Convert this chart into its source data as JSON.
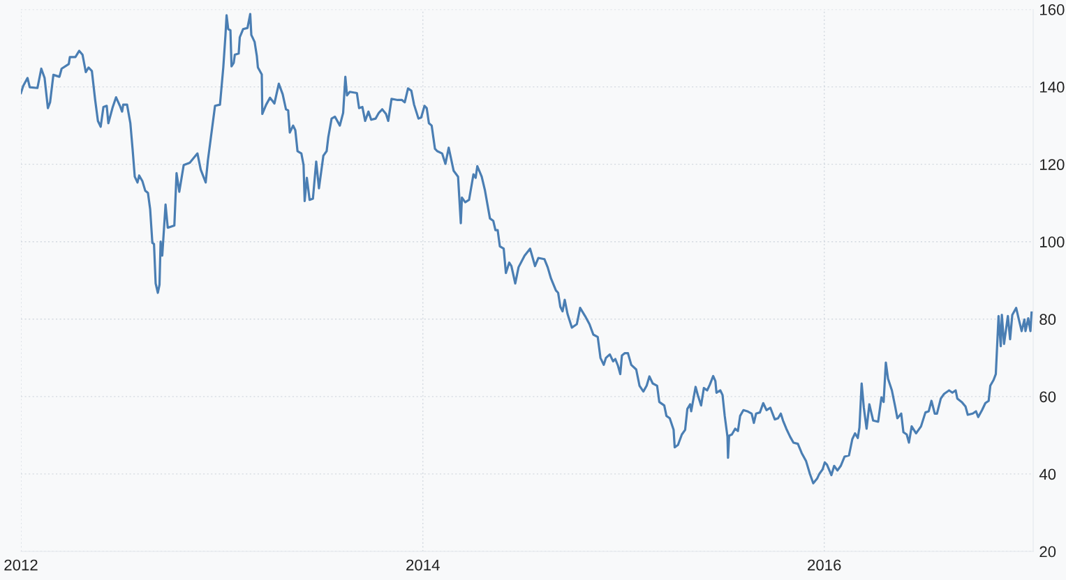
{
  "chart_data": {
    "type": "line",
    "x": [
      "2012-01-01",
      "2012-01-05",
      "2012-01-13",
      "2012-01-17",
      "2012-01-31",
      "2012-02-07",
      "2012-02-13",
      "2012-02-19",
      "2012-02-23",
      "2012-02-29",
      "2012-03-11",
      "2012-03-15",
      "2012-03-28",
      "2012-03-30",
      "2012-04-09",
      "2012-04-16",
      "2012-04-22",
      "2012-04-28",
      "2012-05-03",
      "2012-05-09",
      "2012-05-15",
      "2012-05-20",
      "2012-05-25",
      "2012-05-30",
      "2012-06-05",
      "2012-06-08",
      "2012-06-16",
      "2012-06-22",
      "2012-06-29",
      "2012-07-03",
      "2012-07-05",
      "2012-07-12",
      "2012-07-18",
      "2012-07-22",
      "2012-07-26",
      "2012-07-31",
      "2012-08-03",
      "2012-08-09",
      "2012-08-14",
      "2012-08-19",
      "2012-08-23",
      "2012-08-27",
      "2012-08-30",
      "2012-09-02",
      "2012-09-06",
      "2012-09-09",
      "2012-09-11",
      "2012-09-14",
      "2012-09-20",
      "2012-09-24",
      "2012-10-06",
      "2012-10-10",
      "2012-10-15",
      "2012-10-23",
      "2012-11-03",
      "2012-11-17",
      "2012-11-23",
      "2012-12-02",
      "2012-12-06",
      "2012-12-19",
      "2012-12-28",
      "2013-01-03",
      "2013-01-07",
      "2013-01-09",
      "2013-01-12",
      "2013-01-16",
      "2013-01-18",
      "2013-01-22",
      "2013-01-24",
      "2013-01-31",
      "2013-02-02",
      "2013-02-08",
      "2013-02-16",
      "2013-02-21",
      "2013-02-23",
      "2013-03-01",
      "2013-03-05",
      "2013-03-07",
      "2013-03-14",
      "2013-03-15",
      "2013-03-22",
      "2013-03-29",
      "2013-04-06",
      "2013-04-14",
      "2013-04-21",
      "2013-04-27",
      "2013-05-01",
      "2013-05-04",
      "2013-05-10",
      "2013-05-14",
      "2013-05-18",
      "2013-05-25",
      "2013-05-29",
      "2013-05-31",
      "2013-06-04",
      "2013-06-09",
      "2013-06-15",
      "2013-06-21",
      "2013-06-26",
      "2013-07-04",
      "2013-07-10",
      "2013-07-13",
      "2013-07-19",
      "2013-07-25",
      "2013-08-03",
      "2013-08-09",
      "2013-08-13",
      "2013-08-16",
      "2013-08-21",
      "2013-09-03",
      "2013-09-07",
      "2013-09-13",
      "2013-09-18",
      "2013-09-24",
      "2013-09-29",
      "2013-10-07",
      "2013-10-13",
      "2013-10-19",
      "2013-10-26",
      "2013-10-30",
      "2013-11-05",
      "2013-11-16",
      "2013-11-24",
      "2013-11-29",
      "2013-12-05",
      "2013-12-11",
      "2013-12-16",
      "2013-12-24",
      "2013-12-29",
      "2014-01-04",
      "2014-01-08",
      "2014-01-12",
      "2014-01-17",
      "2014-01-23",
      "2014-01-27",
      "2014-02-05",
      "2014-02-11",
      "2014-02-17",
      "2014-02-26",
      "2014-03-06",
      "2014-03-11",
      "2014-03-13",
      "2014-03-19",
      "2014-03-26",
      "2014-04-03",
      "2014-04-07",
      "2014-04-10",
      "2014-04-18",
      "2014-04-24",
      "2014-05-03",
      "2014-05-09",
      "2014-05-13",
      "2014-05-17",
      "2014-05-21",
      "2014-05-28",
      "2014-06-01",
      "2014-06-07",
      "2014-06-11",
      "2014-06-18",
      "2014-06-24",
      "2014-07-05",
      "2014-07-15",
      "2014-07-24",
      "2014-07-30",
      "2014-08-10",
      "2014-08-16",
      "2014-08-22",
      "2014-08-31",
      "2014-09-04",
      "2014-09-08",
      "2014-09-12",
      "2014-09-16",
      "2014-09-21",
      "2014-09-29",
      "2014-10-08",
      "2014-10-14",
      "2014-10-23",
      "2014-10-31",
      "2014-11-07",
      "2014-11-15",
      "2014-11-20",
      "2014-11-26",
      "2014-11-30",
      "2014-12-07",
      "2014-12-13",
      "2014-12-17",
      "2014-12-22",
      "2014-12-26",
      "2014-12-29",
      "2015-01-03",
      "2015-01-09",
      "2015-01-15",
      "2015-01-24",
      "2015-01-30",
      "2015-02-06",
      "2015-02-12",
      "2015-02-17",
      "2015-02-23",
      "2015-03-03",
      "2015-03-07",
      "2015-03-16",
      "2015-03-20",
      "2015-03-26",
      "2015-04-02",
      "2015-04-04",
      "2015-04-10",
      "2015-04-17",
      "2015-04-23",
      "2015-04-27",
      "2015-05-02",
      "2015-05-04",
      "2015-05-12",
      "2015-05-16",
      "2015-05-22",
      "2015-05-27",
      "2015-06-02",
      "2015-06-07",
      "2015-06-13",
      "2015-06-17",
      "2015-06-19",
      "2015-06-26",
      "2015-06-30",
      "2015-07-04",
      "2015-07-09",
      "2015-07-10",
      "2015-07-12",
      "2015-07-17",
      "2015-07-23",
      "2015-07-28",
      "2015-08-01",
      "2015-08-07",
      "2015-08-14",
      "2015-08-22",
      "2015-08-26",
      "2015-08-30",
      "2015-09-06",
      "2015-09-12",
      "2015-09-18",
      "2015-09-25",
      "2015-10-03",
      "2015-10-09",
      "2015-10-14",
      "2015-10-18",
      "2015-10-24",
      "2015-10-31",
      "2015-11-06",
      "2015-11-14",
      "2015-11-21",
      "2015-11-29",
      "2015-12-06",
      "2015-12-12",
      "2015-12-19",
      "2015-12-23",
      "2015-12-29",
      "2016-01-02",
      "2016-01-06",
      "2016-01-14",
      "2016-01-19",
      "2016-01-25",
      "2016-01-31",
      "2016-02-07",
      "2016-02-15",
      "2016-02-21",
      "2016-02-26",
      "2016-03-02",
      "2016-03-05",
      "2016-03-09",
      "2016-03-13",
      "2016-03-18",
      "2016-03-23",
      "2016-03-30",
      "2016-04-08",
      "2016-04-14",
      "2016-04-18",
      "2016-04-22",
      "2016-04-26",
      "2016-05-03",
      "2016-05-09",
      "2016-05-13",
      "2016-05-20",
      "2016-05-24",
      "2016-05-30",
      "2016-06-03",
      "2016-06-08",
      "2016-06-16",
      "2016-06-25",
      "2016-07-03",
      "2016-07-09",
      "2016-07-14",
      "2016-07-20",
      "2016-07-24",
      "2016-07-31",
      "2016-08-06",
      "2016-08-15",
      "2016-08-21",
      "2016-08-27",
      "2016-08-30",
      "2016-09-07",
      "2016-09-14",
      "2016-09-18",
      "2016-09-27",
      "2016-10-03",
      "2016-10-07",
      "2016-10-14",
      "2016-10-20",
      "2016-10-26",
      "2016-10-29",
      "2016-11-04",
      "2016-11-08",
      "2016-11-10",
      "2016-11-13",
      "2016-11-17",
      "2016-11-19",
      "2016-11-23",
      "2016-11-30",
      "2016-12-04",
      "2016-12-08",
      "2016-12-15",
      "2016-12-19",
      "2016-12-25",
      "2016-12-30",
      "2017-01-01",
      "2017-01-06",
      "2017-01-10",
      "2017-01-12"
    ],
    "series": [
      {
        "color": "#4a7eb3",
        "values": [
          138.4,
          140.2,
          142.3,
          139.9,
          139.7,
          144.7,
          142.3,
          134.5,
          136,
          143.1,
          142.6,
          144.7,
          145.9,
          147.7,
          147.7,
          149.3,
          148.3,
          143.8,
          145,
          144.1,
          136.6,
          131.2,
          129.7,
          134.8,
          135.1,
          130.6,
          134.8,
          137.3,
          135.1,
          133.6,
          135.4,
          135.4,
          130.6,
          124,
          116.8,
          115.3,
          117.1,
          115.6,
          113.2,
          112.6,
          108.4,
          99.7,
          99.4,
          89.2,
          86.8,
          88.9,
          100,
          96.4,
          109.6,
          103.6,
          104.2,
          117.7,
          112.9,
          119.8,
          120.4,
          122.8,
          118.6,
          115.3,
          121,
          135.1,
          135.4,
          145,
          153.4,
          158.5,
          154.9,
          154.6,
          145.3,
          146.2,
          148.3,
          148.6,
          152.8,
          154.9,
          155.2,
          158.8,
          153.4,
          151.6,
          148,
          145,
          143.2,
          133,
          135.4,
          137.2,
          135.7,
          140.8,
          138.1,
          134.2,
          133.9,
          128.2,
          130,
          128.8,
          123.4,
          122.8,
          119.8,
          110.5,
          116.5,
          110.8,
          111.1,
          120.7,
          113.8,
          122.2,
          123.4,
          127,
          131.8,
          132.3,
          130,
          133.3,
          142.6,
          137.8,
          138.7,
          138.4,
          134.5,
          134.8,
          131.2,
          133.6,
          131.5,
          131.8,
          133.3,
          134.2,
          133,
          131.2,
          136.9,
          136.6,
          136.6,
          136,
          139.6,
          139,
          135.4,
          131.8,
          132.1,
          135.1,
          134.5,
          130.6,
          130,
          124,
          123.4,
          122.8,
          120.1,
          124.3,
          118.3,
          116.8,
          104.8,
          111.4,
          110.2,
          110.8,
          117.4,
          116.5,
          119.5,
          116.8,
          113.2,
          106,
          105.4,
          103,
          103,
          98.8,
          98.2,
          91.9,
          94.6,
          93.7,
          89.2,
          93.4,
          96.4,
          98.2,
          93.7,
          95.8,
          95.5,
          93.4,
          90.5,
          87.4,
          86.8,
          83.2,
          82,
          85,
          81.4,
          77.8,
          78.7,
          82.9,
          80.8,
          78.7,
          76,
          75.4,
          70,
          68.2,
          70,
          70.9,
          69.1,
          69.7,
          67.9,
          65.8,
          70.6,
          71.2,
          71.2,
          68.2,
          67,
          62.8,
          61.3,
          62.8,
          65.2,
          63.4,
          62.8,
          58.6,
          57.7,
          55,
          54.4,
          51.4,
          46.9,
          47.5,
          50.2,
          51.4,
          56.8,
          58,
          56.2,
          62.5,
          60.4,
          57.7,
          62.2,
          61.6,
          63.1,
          65.3,
          64,
          61,
          61.6,
          60.4,
          55,
          49.6,
          44.2,
          49.9,
          50.2,
          51.7,
          51.1,
          55,
          56.5,
          56.2,
          55.6,
          53.2,
          55.6,
          55.9,
          58.3,
          56.5,
          57.1,
          54.1,
          54.4,
          55.6,
          53.8,
          51.7,
          49.6,
          48.1,
          47.8,
          45.4,
          43.3,
          40,
          37.6,
          38.8,
          40,
          41.2,
          43,
          42.4,
          39.7,
          42.1,
          40.9,
          42.1,
          44.5,
          44.8,
          49,
          50.5,
          49.3,
          52,
          63.4,
          57.1,
          51.7,
          58,
          53.8,
          53.5,
          59.8,
          58.6,
          68.8,
          64.6,
          61.6,
          57.4,
          54.4,
          55.6,
          50.8,
          50.2,
          48.1,
          52.3,
          50.5,
          52.3,
          55.9,
          56.2,
          58.9,
          55.6,
          55.6,
          59.5,
          60.7,
          61.6,
          61,
          61.6,
          59.5,
          58.6,
          57.4,
          55.3,
          55.6,
          56.2,
          54.7,
          56.5,
          58.3,
          58.9,
          62.8,
          64.3,
          65.8,
          71.8,
          80.8,
          73,
          81.1,
          73.6,
          80.8,
          74.8,
          81.1,
          82.9,
          80.5,
          76.9,
          79.9,
          76.9,
          80.2,
          76.9,
          81.7
        ]
      }
    ],
    "xlim": [
      "2012-01-01",
      "2017-01-15"
    ],
    "xticks": [
      {
        "value": "2012-01-01",
        "label": "2012"
      },
      {
        "value": "2014-01-01",
        "label": "2014"
      },
      {
        "value": "2016-01-01",
        "label": "2016"
      }
    ],
    "ylim": [
      20,
      160
    ],
    "yticks": [
      20,
      40,
      60,
      80,
      100,
      120,
      140,
      160
    ],
    "grid": true,
    "line_style": "solid"
  }
}
